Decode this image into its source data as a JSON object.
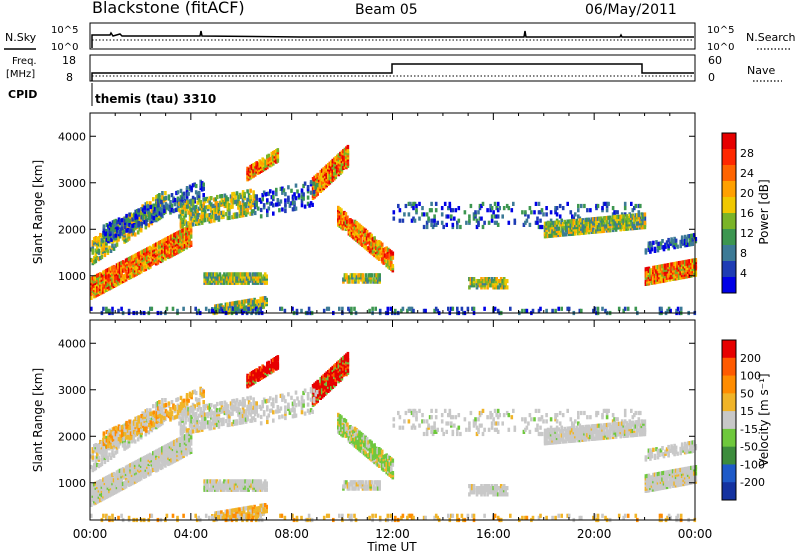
{
  "header": {
    "station": "Blackstone (fitACF)",
    "beam": "Beam 05",
    "date": "06/May/2011"
  },
  "top_panels": {
    "nsky_label": "N.Sky",
    "nsearch_label": "N.Search",
    "noise_ticks": [
      "10^5",
      "10^0"
    ],
    "freq_label_1": "Freq.",
    "freq_label_2": "[MHz]",
    "nave_label": "Nave",
    "freq_ticks": [
      "18",
      "8"
    ],
    "nave_ticks": [
      "60",
      "0"
    ],
    "cpid_label": "CPID",
    "cpid_text": "themis (tau) 3310"
  },
  "chart_data": [
    {
      "type": "heatmap",
      "name": "power",
      "ylabel": "Slant Range [km]",
      "xlabel": "Time UT",
      "xlim": [
        0,
        24
      ],
      "ylim": [
        200,
        4500
      ],
      "yticks": [
        "4000",
        "3000",
        "2000",
        "1000"
      ],
      "xticks": [
        "00:00",
        "04:00",
        "08:00",
        "12:00",
        "16:00",
        "20:00",
        "00:00"
      ],
      "colorbar": {
        "label": "Power [dB]",
        "ticks": [
          "28",
          "24",
          "20",
          "16",
          "12",
          "8",
          "4"
        ],
        "colors": [
          "#0000e6",
          "#1e3cb4",
          "#3c7a96",
          "#3c9650",
          "#7ab428",
          "#f0c800",
          "#ffa000",
          "#ff6400",
          "#ff2800",
          "#e60000"
        ]
      }
    },
    {
      "type": "heatmap",
      "name": "velocity",
      "ylabel": "Slant Range [km]",
      "xlabel": "Time UT",
      "xlim": [
        0,
        24
      ],
      "ylim": [
        200,
        4500
      ],
      "yticks": [
        "4000",
        "3000",
        "2000",
        "1000"
      ],
      "xticks": [
        "00:00",
        "04:00",
        "08:00",
        "12:00",
        "16:00",
        "20:00",
        "00:00"
      ],
      "colorbar": {
        "label": "Velocity [m s⁻¹]",
        "ticks": [
          "200",
          "100",
          "50",
          "15",
          "-15",
          "-50",
          "-100",
          "-200"
        ],
        "colors": [
          "#1432a0",
          "#1e5ac8",
          "#3c8c3c",
          "#6ec83c",
          "#c8c8c8",
          "#f0b428",
          "#ff8c00",
          "#ff5a00",
          "#e60000"
        ]
      }
    }
  ]
}
